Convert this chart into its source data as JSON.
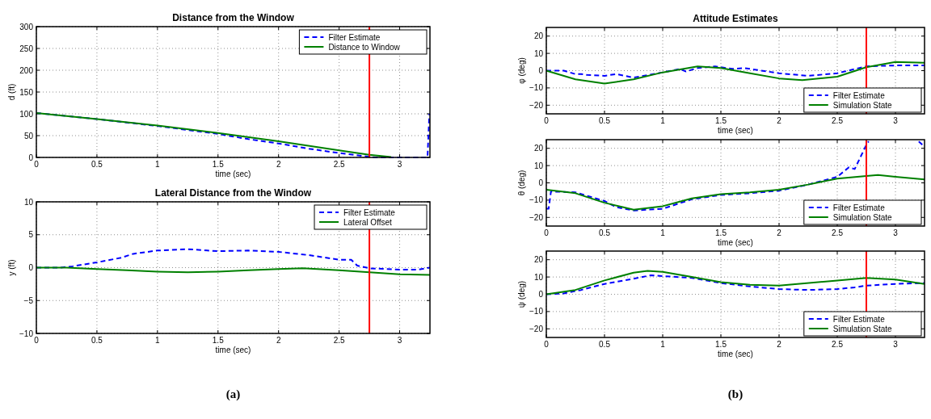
{
  "chart_data": [
    {
      "type": "line",
      "title": "Distance from the Window",
      "xlabel": "time (sec)",
      "ylabel": "d (ft)",
      "xlim": [
        0,
        3.25
      ],
      "xticks": [
        0,
        0.5,
        1,
        1.5,
        2,
        2.5,
        3
      ],
      "ylim": [
        0,
        300
      ],
      "yticks": [
        0,
        50,
        100,
        150,
        200,
        250,
        300
      ],
      "grid": true,
      "legend": "top right",
      "ref_lines": [
        {
          "axis": "x",
          "value": 2.75,
          "color": "#ff0000"
        }
      ],
      "series": [
        {
          "name": "Filter Estimate",
          "color": "#0000ff",
          "line_style": "dashed",
          "x": [
            0,
            0.5,
            1,
            1.5,
            1.75,
            2,
            2.25,
            2.5,
            2.7,
            2.8,
            3.23,
            3.245
          ],
          "values": [
            102,
            88,
            72,
            54,
            42,
            32,
            20,
            10,
            3,
            0,
            0,
            100
          ]
        },
        {
          "name": "Distance to Window",
          "color": "#008000",
          "line_style": "solid",
          "x": [
            0,
            0.5,
            1,
            1.5,
            2,
            2.5,
            2.75,
            2.93
          ],
          "values": [
            102,
            88,
            73,
            56,
            37,
            16,
            6,
            1
          ]
        }
      ]
    },
    {
      "type": "line",
      "title": "Lateral Distance from the Window",
      "xlabel": "time (sec)",
      "ylabel": "y (ft)",
      "xlim": [
        0,
        3.25
      ],
      "xticks": [
        0,
        0.5,
        1,
        1.5,
        2,
        2.5,
        3
      ],
      "ylim": [
        -10,
        10
      ],
      "yticks": [
        -10,
        -5,
        0,
        5,
        10
      ],
      "grid": true,
      "legend": "top right",
      "ref_lines": [
        {
          "axis": "x",
          "value": 2.75,
          "color": "#ff0000"
        }
      ],
      "annotations": [
        "(a)"
      ],
      "series": [
        {
          "name": "Filter Estimate",
          "color": "#0000ff",
          "line_style": "dashed",
          "x": [
            0,
            0.2,
            0.3,
            0.5,
            0.7,
            0.8,
            1,
            1.25,
            1.5,
            1.75,
            2,
            2.25,
            2.5,
            2.6,
            2.65,
            2.75,
            3,
            3.15,
            3.25
          ],
          "values": [
            0,
            0,
            0.2,
            0.8,
            1.5,
            2.1,
            2.6,
            2.8,
            2.5,
            2.6,
            2.4,
            1.9,
            1.2,
            1.2,
            0.3,
            -0.1,
            -0.3,
            -0.3,
            0
          ]
        },
        {
          "name": "Lateral Offset",
          "color": "#008000",
          "line_style": "solid",
          "x": [
            0,
            0.25,
            0.5,
            0.75,
            1,
            1.25,
            1.5,
            1.75,
            2,
            2.2,
            2.5,
            2.75,
            3,
            3.25
          ],
          "values": [
            0,
            0,
            -0.2,
            -0.4,
            -0.6,
            -0.7,
            -0.6,
            -0.4,
            -0.2,
            -0.1,
            -0.4,
            -0.7,
            -1,
            -1.1
          ]
        }
      ]
    },
    {
      "type": "line",
      "title": "Attitude Estimates",
      "xlabel": "time (sec)",
      "ylabel": "φ (deg)",
      "xlim": [
        0,
        3.25
      ],
      "xticks": [
        0,
        0.5,
        1,
        1.5,
        2,
        2.5,
        3
      ],
      "ylim": [
        -25,
        25
      ],
      "yticks": [
        -20,
        -10,
        0,
        10,
        20
      ],
      "grid": true,
      "legend": "bottom right",
      "ref_lines": [
        {
          "axis": "x",
          "value": 2.75,
          "color": "#ff0000"
        }
      ],
      "series": [
        {
          "name": "Filter Estimate",
          "color": "#0000ff",
          "line_style": "dashed",
          "x": [
            0,
            0.15,
            0.25,
            0.3,
            0.35,
            0.5,
            0.6,
            0.75,
            1,
            1.15,
            1.2,
            1.3,
            1.45,
            1.6,
            1.7,
            2,
            2.25,
            2.5,
            2.75,
            3,
            3.25
          ],
          "values": [
            0,
            0,
            -2,
            -2,
            -2.5,
            -3,
            -2,
            -4,
            -1,
            1,
            -0.5,
            1.5,
            2.5,
            1,
            1.5,
            -1.5,
            -3,
            -1.5,
            2.5,
            3,
            3
          ]
        },
        {
          "name": "Simulation State",
          "color": "#008000",
          "line_style": "solid",
          "x": [
            0,
            0.25,
            0.5,
            0.75,
            1,
            1.3,
            1.5,
            1.75,
            2,
            2.2,
            2.5,
            2.75,
            3,
            3.25
          ],
          "values": [
            0,
            -5,
            -7.5,
            -5,
            -1,
            2.5,
            1.5,
            -1.5,
            -4.5,
            -5.5,
            -3.5,
            2,
            5,
            4.5
          ]
        }
      ]
    },
    {
      "type": "line",
      "xlabel": "time (sec)",
      "ylabel": "θ (deg)",
      "xlim": [
        0,
        3.25
      ],
      "xticks": [
        0,
        0.5,
        1,
        1.5,
        2,
        2.5,
        3
      ],
      "ylim": [
        -25,
        25
      ],
      "yticks": [
        -20,
        -10,
        0,
        10,
        20
      ],
      "grid": true,
      "legend": "bottom right",
      "ref_lines": [
        {
          "axis": "x",
          "value": 2.75,
          "color": "#ff0000"
        }
      ],
      "series": [
        {
          "name": "Filter Estimate",
          "color": "#0000ff",
          "line_style": "dashed",
          "x": [
            0,
            0.02,
            0.04,
            0.25,
            0.5,
            0.6,
            0.75,
            1,
            1.25,
            1.5,
            1.75,
            2,
            2.25,
            2.5,
            2.6,
            2.65,
            2.75,
            2.77,
            3,
            3.2,
            3.25
          ],
          "values": [
            -15,
            -15,
            -5,
            -5.5,
            -10.5,
            -14,
            -16,
            -15,
            -9.5,
            -7,
            -6,
            -4.5,
            -1,
            3.5,
            9,
            8,
            22,
            24,
            null,
            24,
            21
          ]
        },
        {
          "name": "Simulation State",
          "color": "#008000",
          "line_style": "solid",
          "x": [
            0,
            0.25,
            0.5,
            0.75,
            1,
            1.25,
            1.5,
            1.75,
            2,
            2.25,
            2.5,
            2.75,
            2.85,
            3,
            3.25
          ],
          "values": [
            -4,
            -6,
            -11.5,
            -15.5,
            -13.5,
            -9,
            -6.5,
            -5.5,
            -4,
            -1,
            2.5,
            4,
            4.5,
            3.5,
            2
          ]
        }
      ]
    },
    {
      "type": "line",
      "xlabel": "time (sec)",
      "ylabel": "ψ (deg)",
      "xlim": [
        0,
        3.25
      ],
      "xticks": [
        0,
        0.5,
        1,
        1.5,
        2,
        2.5,
        3
      ],
      "ylim": [
        -25,
        25
      ],
      "yticks": [
        -20,
        -10,
        0,
        10,
        20
      ],
      "grid": true,
      "legend": "bottom right",
      "ref_lines": [
        {
          "axis": "x",
          "value": 2.75,
          "color": "#ff0000"
        }
      ],
      "annotations": [
        "(b)"
      ],
      "series": [
        {
          "name": "Filter Estimate",
          "color": "#0000ff",
          "line_style": "dashed",
          "x": [
            0,
            0.15,
            0.3,
            0.5,
            0.75,
            0.9,
            1,
            1.25,
            1.5,
            1.75,
            2,
            2.25,
            2.5,
            2.65,
            2.75,
            3,
            3.25
          ],
          "values": [
            0,
            0.5,
            2.5,
            6,
            9,
            11,
            10.5,
            9.5,
            6.5,
            4.5,
            3,
            2.5,
            3,
            4,
            5,
            6,
            6.5
          ]
        },
        {
          "name": "Simulation State",
          "color": "#008000",
          "line_style": "solid",
          "x": [
            0,
            0.25,
            0.5,
            0.75,
            0.87,
            1,
            1.25,
            1.5,
            1.75,
            2,
            2.5,
            2.75,
            3,
            3.25
          ],
          "values": [
            0,
            2.5,
            8,
            12.5,
            13.5,
            13,
            10,
            7,
            5.5,
            5,
            8,
            9.5,
            8.5,
            6
          ]
        }
      ]
    }
  ]
}
